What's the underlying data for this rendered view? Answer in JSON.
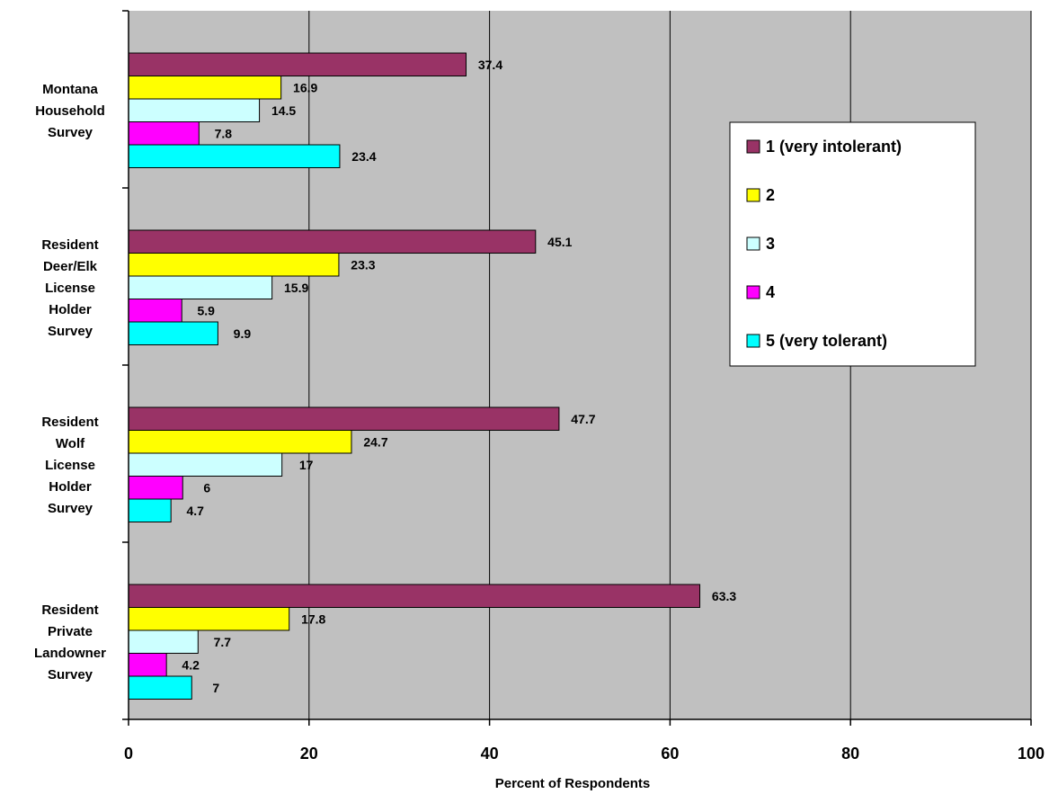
{
  "chart_data": {
    "type": "bar",
    "orientation": "horizontal",
    "categories": [
      [
        "Montana",
        "Household",
        "Survey"
      ],
      [
        "Resident",
        "Deer/Elk",
        "License",
        "Holder",
        "Survey"
      ],
      [
        "Resident",
        "Wolf",
        "License",
        "Holder",
        "Survey"
      ],
      [
        "Resident",
        "Private",
        "Landowner",
        "Survey"
      ]
    ],
    "series": [
      {
        "name": "1 (very intolerant)",
        "color": "#993366",
        "values": [
          37.4,
          45.1,
          47.7,
          63.3
        ]
      },
      {
        "name": "2",
        "color": "#FFFF00",
        "values": [
          16.9,
          23.3,
          24.7,
          17.8
        ]
      },
      {
        "name": "3",
        "color": "#CCFFFF",
        "values": [
          14.5,
          15.9,
          17,
          7.7
        ]
      },
      {
        "name": "4",
        "color": "#FF00FF",
        "values": [
          7.8,
          5.9,
          6,
          4.2
        ]
      },
      {
        "name": "5 (very tolerant)",
        "color": "#00FFFF",
        "values": [
          23.4,
          9.9,
          4.7,
          7
        ]
      }
    ],
    "xlabel": "Percent of Respondents",
    "ylabel": "",
    "xlim": [
      0,
      100
    ],
    "xticks": [
      "0",
      "20",
      "40",
      "60",
      "80",
      "100"
    ],
    "plot_background": "#C0C0C0",
    "grid": "vertical",
    "legend_position": "right"
  }
}
